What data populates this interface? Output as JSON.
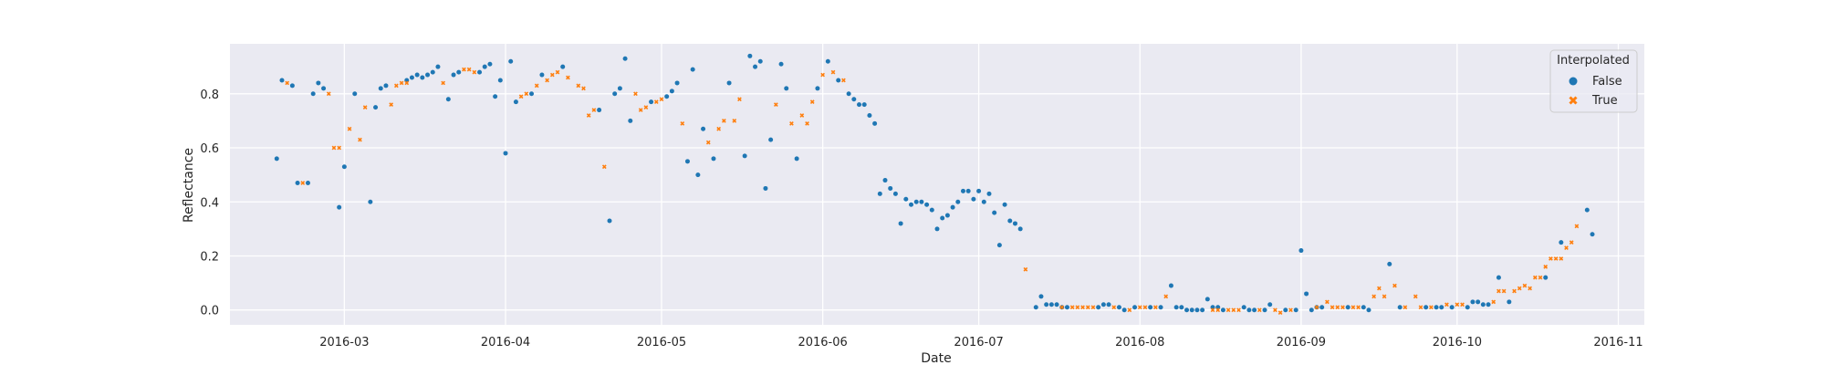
{
  "chart_data": {
    "type": "scatter",
    "xlabel": "Date",
    "ylabel": "Reflectance",
    "x_axis_type": "date",
    "xlim": [
      "2016-02-08",
      "2016-11-06"
    ],
    "ylim": [
      -0.055,
      0.985
    ],
    "x_ticks": [
      "2016-03-01",
      "2016-04-01",
      "2016-05-01",
      "2016-06-01",
      "2016-07-01",
      "2016-08-01",
      "2016-09-01",
      "2016-10-01",
      "2016-11-01"
    ],
    "x_tick_labels": [
      "2016-03",
      "2016-04",
      "2016-05",
      "2016-06",
      "2016-07",
      "2016-08",
      "2016-09",
      "2016-10",
      "2016-11"
    ],
    "y_ticks": [
      0.0,
      0.2,
      0.4,
      0.6,
      0.8
    ],
    "y_tick_labels": [
      "0.0",
      "0.2",
      "0.4",
      "0.6",
      "0.8"
    ],
    "grid": true,
    "legend": {
      "title": "Interpolated",
      "position": "top-right"
    },
    "series": [
      {
        "name": "False",
        "color": "#1f77b4",
        "marker": "circle",
        "points": [
          [
            "2016-02-17",
            0.56
          ],
          [
            "2016-02-18",
            0.85
          ],
          [
            "2016-02-20",
            0.83
          ],
          [
            "2016-02-21",
            0.47
          ],
          [
            "2016-02-23",
            0.47
          ],
          [
            "2016-02-24",
            0.8
          ],
          [
            "2016-02-25",
            0.84
          ],
          [
            "2016-02-26",
            0.82
          ],
          [
            "2016-02-29",
            0.38
          ],
          [
            "2016-03-01",
            0.53
          ],
          [
            "2016-03-03",
            0.8
          ],
          [
            "2016-03-06",
            0.4
          ],
          [
            "2016-03-07",
            0.75
          ],
          [
            "2016-03-08",
            0.82
          ],
          [
            "2016-03-09",
            0.83
          ],
          [
            "2016-03-13",
            0.85
          ],
          [
            "2016-03-14",
            0.86
          ],
          [
            "2016-03-15",
            0.87
          ],
          [
            "2016-03-16",
            0.86
          ],
          [
            "2016-03-17",
            0.87
          ],
          [
            "2016-03-18",
            0.88
          ],
          [
            "2016-03-19",
            0.9
          ],
          [
            "2016-03-21",
            0.78
          ],
          [
            "2016-03-22",
            0.87
          ],
          [
            "2016-03-23",
            0.88
          ],
          [
            "2016-03-27",
            0.88
          ],
          [
            "2016-03-28",
            0.9
          ],
          [
            "2016-03-29",
            0.91
          ],
          [
            "2016-03-30",
            0.79
          ],
          [
            "2016-03-31",
            0.85
          ],
          [
            "2016-04-01",
            0.58
          ],
          [
            "2016-04-02",
            0.92
          ],
          [
            "2016-04-03",
            0.77
          ],
          [
            "2016-04-06",
            0.8
          ],
          [
            "2016-04-08",
            0.87
          ],
          [
            "2016-04-12",
            0.9
          ],
          [
            "2016-04-19",
            0.74
          ],
          [
            "2016-04-21",
            0.33
          ],
          [
            "2016-04-22",
            0.8
          ],
          [
            "2016-04-23",
            0.82
          ],
          [
            "2016-04-24",
            0.93
          ],
          [
            "2016-04-25",
            0.7
          ],
          [
            "2016-04-29",
            0.77
          ],
          [
            "2016-05-02",
            0.79
          ],
          [
            "2016-05-03",
            0.81
          ],
          [
            "2016-05-04",
            0.84
          ],
          [
            "2016-05-06",
            0.55
          ],
          [
            "2016-05-07",
            0.89
          ],
          [
            "2016-05-08",
            0.5
          ],
          [
            "2016-05-09",
            0.67
          ],
          [
            "2016-05-11",
            0.56
          ],
          [
            "2016-05-14",
            0.84
          ],
          [
            "2016-05-17",
            0.57
          ],
          [
            "2016-05-18",
            0.94
          ],
          [
            "2016-05-19",
            0.9
          ],
          [
            "2016-05-20",
            0.92
          ],
          [
            "2016-05-21",
            0.45
          ],
          [
            "2016-05-22",
            0.63
          ],
          [
            "2016-05-24",
            0.91
          ],
          [
            "2016-05-25",
            0.82
          ],
          [
            "2016-05-27",
            0.56
          ],
          [
            "2016-05-31",
            0.82
          ],
          [
            "2016-06-02",
            0.92
          ],
          [
            "2016-06-04",
            0.85
          ],
          [
            "2016-06-06",
            0.8
          ],
          [
            "2016-06-07",
            0.78
          ],
          [
            "2016-06-08",
            0.76
          ],
          [
            "2016-06-09",
            0.76
          ],
          [
            "2016-06-10",
            0.72
          ],
          [
            "2016-06-11",
            0.69
          ],
          [
            "2016-06-12",
            0.43
          ],
          [
            "2016-06-13",
            0.48
          ],
          [
            "2016-06-14",
            0.45
          ],
          [
            "2016-06-15",
            0.43
          ],
          [
            "2016-06-16",
            0.32
          ],
          [
            "2016-06-17",
            0.41
          ],
          [
            "2016-06-18",
            0.39
          ],
          [
            "2016-06-19",
            0.4
          ],
          [
            "2016-06-20",
            0.4
          ],
          [
            "2016-06-21",
            0.39
          ],
          [
            "2016-06-22",
            0.37
          ],
          [
            "2016-06-23",
            0.3
          ],
          [
            "2016-06-24",
            0.34
          ],
          [
            "2016-06-25",
            0.35
          ],
          [
            "2016-06-26",
            0.38
          ],
          [
            "2016-06-27",
            0.4
          ],
          [
            "2016-06-28",
            0.44
          ],
          [
            "2016-06-29",
            0.44
          ],
          [
            "2016-06-30",
            0.41
          ],
          [
            "2016-07-01",
            0.44
          ],
          [
            "2016-07-02",
            0.4
          ],
          [
            "2016-07-03",
            0.43
          ],
          [
            "2016-07-04",
            0.36
          ],
          [
            "2016-07-05",
            0.24
          ],
          [
            "2016-07-06",
            0.39
          ],
          [
            "2016-07-07",
            0.33
          ],
          [
            "2016-07-08",
            0.32
          ],
          [
            "2016-07-09",
            0.3
          ],
          [
            "2016-07-12",
            0.01
          ],
          [
            "2016-07-13",
            0.05
          ],
          [
            "2016-07-14",
            0.02
          ],
          [
            "2016-07-15",
            0.02
          ],
          [
            "2016-07-16",
            0.02
          ],
          [
            "2016-07-17",
            0.01
          ],
          [
            "2016-07-18",
            0.01
          ],
          [
            "2016-07-24",
            0.01
          ],
          [
            "2016-07-25",
            0.02
          ],
          [
            "2016-07-26",
            0.02
          ],
          [
            "2016-07-28",
            0.01
          ],
          [
            "2016-07-29",
            0.0
          ],
          [
            "2016-07-31",
            0.01
          ],
          [
            "2016-08-03",
            0.01
          ],
          [
            "2016-08-05",
            0.01
          ],
          [
            "2016-08-07",
            0.09
          ],
          [
            "2016-08-08",
            0.01
          ],
          [
            "2016-08-09",
            0.01
          ],
          [
            "2016-08-10",
            0.0
          ],
          [
            "2016-08-11",
            0.0
          ],
          [
            "2016-08-12",
            0.0
          ],
          [
            "2016-08-13",
            0.0
          ],
          [
            "2016-08-14",
            0.04
          ],
          [
            "2016-08-15",
            0.01
          ],
          [
            "2016-08-16",
            0.01
          ],
          [
            "2016-08-17",
            0.0
          ],
          [
            "2016-08-21",
            0.01
          ],
          [
            "2016-08-22",
            0.0
          ],
          [
            "2016-08-23",
            0.0
          ],
          [
            "2016-08-25",
            0.0
          ],
          [
            "2016-08-26",
            0.02
          ],
          [
            "2016-08-29",
            0.0
          ],
          [
            "2016-08-31",
            0.0
          ],
          [
            "2016-09-01",
            0.22
          ],
          [
            "2016-09-02",
            0.06
          ],
          [
            "2016-09-03",
            0.0
          ],
          [
            "2016-09-04",
            0.01
          ],
          [
            "2016-09-05",
            0.01
          ],
          [
            "2016-09-10",
            0.01
          ],
          [
            "2016-09-13",
            0.01
          ],
          [
            "2016-09-14",
            0.0
          ],
          [
            "2016-09-18",
            0.17
          ],
          [
            "2016-09-20",
            0.01
          ],
          [
            "2016-09-25",
            0.01
          ],
          [
            "2016-09-27",
            0.01
          ],
          [
            "2016-09-28",
            0.01
          ],
          [
            "2016-09-30",
            0.01
          ],
          [
            "2016-10-03",
            0.01
          ],
          [
            "2016-10-04",
            0.03
          ],
          [
            "2016-10-05",
            0.03
          ],
          [
            "2016-10-06",
            0.02
          ],
          [
            "2016-10-07",
            0.02
          ],
          [
            "2016-10-09",
            0.12
          ],
          [
            "2016-10-11",
            0.03
          ],
          [
            "2016-10-18",
            0.12
          ],
          [
            "2016-10-21",
            0.25
          ],
          [
            "2016-10-26",
            0.37
          ],
          [
            "2016-10-27",
            0.28
          ]
        ]
      },
      {
        "name": "True",
        "color": "#ff7f0e",
        "marker": "x",
        "points": [
          [
            "2016-02-19",
            0.84
          ],
          [
            "2016-02-22",
            0.47
          ],
          [
            "2016-02-27",
            0.8
          ],
          [
            "2016-02-28",
            0.6
          ],
          [
            "2016-02-29",
            0.6
          ],
          [
            "2016-03-02",
            0.67
          ],
          [
            "2016-03-04",
            0.63
          ],
          [
            "2016-03-05",
            0.75
          ],
          [
            "2016-03-10",
            0.76
          ],
          [
            "2016-03-11",
            0.83
          ],
          [
            "2016-03-12",
            0.84
          ],
          [
            "2016-03-13",
            0.84
          ],
          [
            "2016-03-20",
            0.84
          ],
          [
            "2016-03-24",
            0.89
          ],
          [
            "2016-03-25",
            0.89
          ],
          [
            "2016-03-26",
            0.88
          ],
          [
            "2016-04-04",
            0.79
          ],
          [
            "2016-04-05",
            0.8
          ],
          [
            "2016-04-07",
            0.83
          ],
          [
            "2016-04-09",
            0.85
          ],
          [
            "2016-04-10",
            0.87
          ],
          [
            "2016-04-11",
            0.88
          ],
          [
            "2016-04-13",
            0.86
          ],
          [
            "2016-04-15",
            0.83
          ],
          [
            "2016-04-16",
            0.82
          ],
          [
            "2016-04-17",
            0.72
          ],
          [
            "2016-04-18",
            0.74
          ],
          [
            "2016-04-20",
            0.53
          ],
          [
            "2016-04-26",
            0.8
          ],
          [
            "2016-04-27",
            0.74
          ],
          [
            "2016-04-28",
            0.75
          ],
          [
            "2016-04-30",
            0.77
          ],
          [
            "2016-05-01",
            0.78
          ],
          [
            "2016-05-05",
            0.69
          ],
          [
            "2016-05-10",
            0.62
          ],
          [
            "2016-05-12",
            0.67
          ],
          [
            "2016-05-13",
            0.7
          ],
          [
            "2016-05-15",
            0.7
          ],
          [
            "2016-05-16",
            0.78
          ],
          [
            "2016-05-23",
            0.76
          ],
          [
            "2016-05-26",
            0.69
          ],
          [
            "2016-05-28",
            0.72
          ],
          [
            "2016-05-29",
            0.69
          ],
          [
            "2016-05-30",
            0.77
          ],
          [
            "2016-06-01",
            0.87
          ],
          [
            "2016-06-03",
            0.88
          ],
          [
            "2016-06-05",
            0.85
          ],
          [
            "2016-07-10",
            0.15
          ],
          [
            "2016-07-17",
            0.01
          ],
          [
            "2016-07-19",
            0.01
          ],
          [
            "2016-07-20",
            0.01
          ],
          [
            "2016-07-21",
            0.01
          ],
          [
            "2016-07-22",
            0.01
          ],
          [
            "2016-07-23",
            0.01
          ],
          [
            "2016-07-27",
            0.01
          ],
          [
            "2016-07-30",
            0.0
          ],
          [
            "2016-08-01",
            0.01
          ],
          [
            "2016-08-02",
            0.01
          ],
          [
            "2016-08-04",
            0.01
          ],
          [
            "2016-08-06",
            0.05
          ],
          [
            "2016-08-15",
            0.0
          ],
          [
            "2016-08-16",
            0.0
          ],
          [
            "2016-08-18",
            0.0
          ],
          [
            "2016-08-19",
            0.0
          ],
          [
            "2016-08-20",
            0.0
          ],
          [
            "2016-08-24",
            0.0
          ],
          [
            "2016-08-27",
            0.0
          ],
          [
            "2016-08-28",
            -0.01
          ],
          [
            "2016-08-30",
            0.0
          ],
          [
            "2016-09-04",
            0.01
          ],
          [
            "2016-09-06",
            0.03
          ],
          [
            "2016-09-07",
            0.01
          ],
          [
            "2016-09-08",
            0.01
          ],
          [
            "2016-09-09",
            0.01
          ],
          [
            "2016-09-11",
            0.01
          ],
          [
            "2016-09-12",
            0.01
          ],
          [
            "2016-09-15",
            0.05
          ],
          [
            "2016-09-16",
            0.08
          ],
          [
            "2016-09-17",
            0.05
          ],
          [
            "2016-09-19",
            0.09
          ],
          [
            "2016-09-21",
            0.01
          ],
          [
            "2016-09-23",
            0.05
          ],
          [
            "2016-09-24",
            0.01
          ],
          [
            "2016-09-26",
            0.01
          ],
          [
            "2016-09-29",
            0.02
          ],
          [
            "2016-10-01",
            0.02
          ],
          [
            "2016-10-02",
            0.02
          ],
          [
            "2016-10-08",
            0.03
          ],
          [
            "2016-10-09",
            0.07
          ],
          [
            "2016-10-10",
            0.07
          ],
          [
            "2016-10-12",
            0.07
          ],
          [
            "2016-10-13",
            0.08
          ],
          [
            "2016-10-14",
            0.09
          ],
          [
            "2016-10-15",
            0.08
          ],
          [
            "2016-10-16",
            0.12
          ],
          [
            "2016-10-17",
            0.12
          ],
          [
            "2016-10-18",
            0.16
          ],
          [
            "2016-10-19",
            0.19
          ],
          [
            "2016-10-20",
            0.19
          ],
          [
            "2016-10-21",
            0.19
          ],
          [
            "2016-10-22",
            0.23
          ],
          [
            "2016-10-23",
            0.25
          ],
          [
            "2016-10-24",
            0.31
          ]
        ]
      }
    ]
  }
}
